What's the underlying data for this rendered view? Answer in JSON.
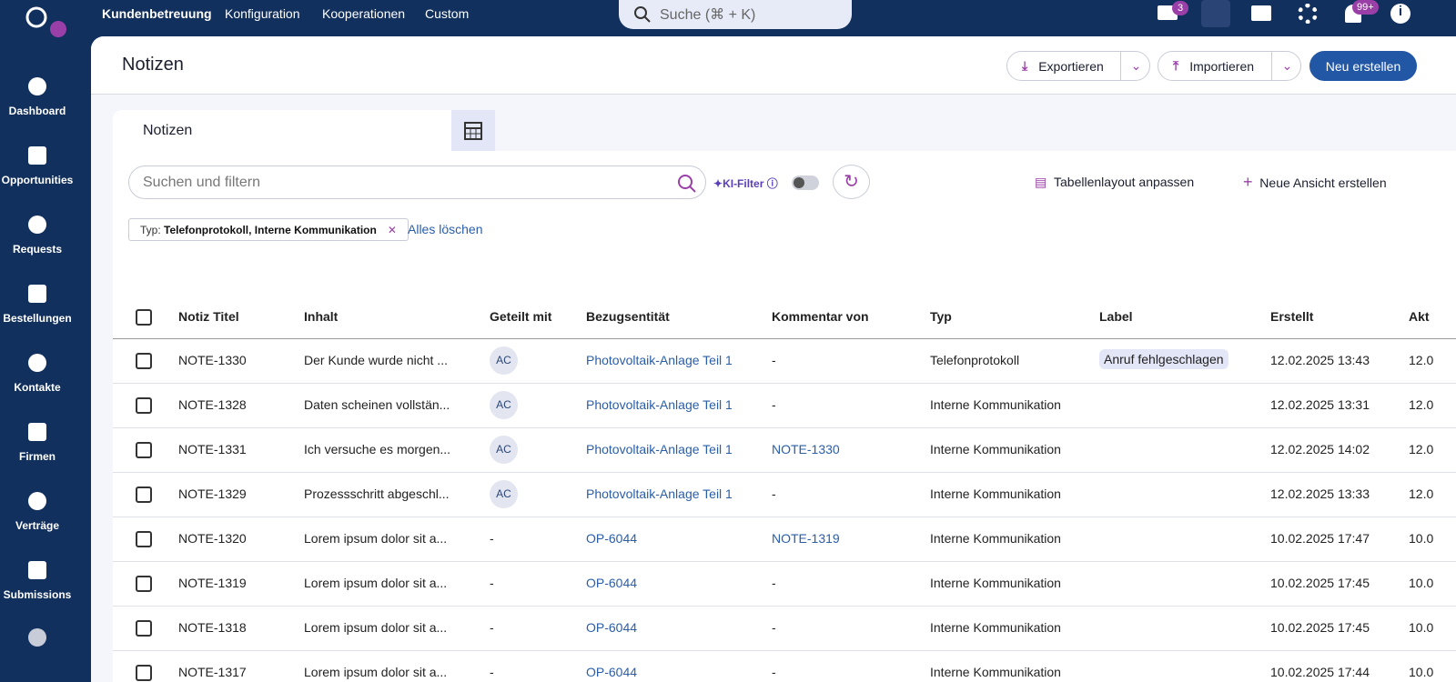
{
  "topnav": {
    "items": [
      "Kundenbetreuung",
      "Konfiguration",
      "Kooperationen",
      "Custom"
    ],
    "search": "Suche (⌘ + K)",
    "mail_badge": "3",
    "bell_badge": "99+"
  },
  "sidebar": [
    "Dashboard",
    "Opportunities",
    "Requests",
    "Bestellungen",
    "Kontakte",
    "Firmen",
    "Verträge",
    "Submissions"
  ],
  "header": {
    "title": "Notizen",
    "export": "Exportieren",
    "import": "Importieren",
    "new": "Neu erstellen"
  },
  "tabs": {
    "active": "Notizen"
  },
  "toolbar": {
    "search_placeholder": "Suchen und filtern",
    "ai_filter": "KI-Filter",
    "layout": "Tabellenlayout anpassen",
    "new_view": "Neue Ansicht erstellen"
  },
  "filter": {
    "prefix": "Typ:",
    "value": "Telefonprotokoll, Interne Kommunikation",
    "clear": "Alles löschen"
  },
  "table": {
    "columns": [
      "Notiz Titel",
      "Inhalt",
      "Geteilt mit",
      "Bezugsentität",
      "Kommentar von",
      "Typ",
      "Label",
      "Erstellt",
      "Akt"
    ],
    "rows": [
      [
        "NOTE-1330",
        "Der Kunde wurde nicht ...",
        "AC",
        "Photovoltaik-Anlage Teil 1",
        "-",
        "Telefonprotokoll",
        "Anruf fehlgeschlagen",
        "12.02.2025 13:43",
        "12.0"
      ],
      [
        "NOTE-1328",
        "Daten scheinen vollstän...",
        "AC",
        "Photovoltaik-Anlage Teil 1",
        "-",
        "Interne Kommunikation",
        null,
        "12.02.2025 13:31",
        "12.0"
      ],
      [
        "NOTE-1331",
        "Ich versuche es morgen...",
        "AC",
        "Photovoltaik-Anlage Teil 1",
        "NOTE-1330",
        "Interne Kommunikation",
        null,
        "12.02.2025 14:02",
        "12.0"
      ],
      [
        "NOTE-1329",
        "Prozessschritt abgeschl...",
        "AC",
        "Photovoltaik-Anlage Teil 1",
        "-",
        "Interne Kommunikation",
        null,
        "12.02.2025 13:33",
        "12.0"
      ],
      [
        "NOTE-1320",
        "Lorem ipsum dolor sit a...",
        "-",
        "OP-6044",
        "NOTE-1319",
        "Interne Kommunikation",
        null,
        "10.02.2025 17:47",
        "10.0"
      ],
      [
        "NOTE-1319",
        "Lorem ipsum dolor sit a...",
        "-",
        "OP-6044",
        "-",
        "Interne Kommunikation",
        null,
        "10.02.2025 17:45",
        "10.0"
      ],
      [
        "NOTE-1318",
        "Lorem ipsum dolor sit a...",
        "-",
        "OP-6044",
        "-",
        "Interne Kommunikation",
        null,
        "10.02.2025 17:45",
        "10.0"
      ],
      [
        "NOTE-1317",
        "Lorem ipsum dolor sit a...",
        "-",
        "OP-6044",
        "-",
        "Interne Kommunikation",
        null,
        "10.02.2025 17:44",
        "10.0"
      ]
    ]
  }
}
